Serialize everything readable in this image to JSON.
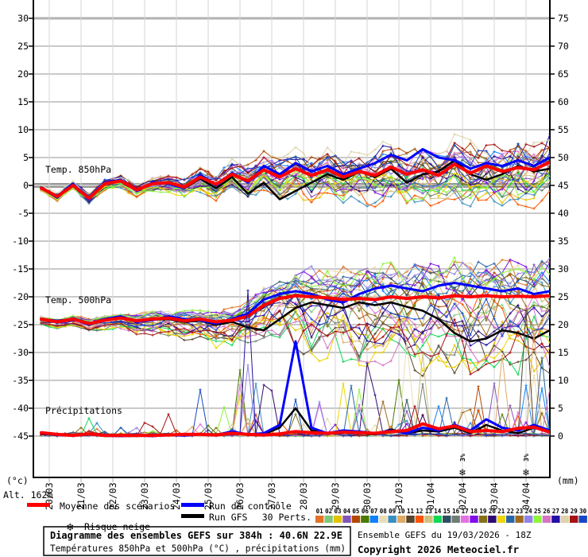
{
  "footer": {
    "altitude": "Alt. 162m",
    "box_line1": "Diagramme des ensembles GEFS sur 384h : 40.6N 22.9E",
    "box_line2": "Températures 850hPa et 500hPa (°C) , précipitations (mm)",
    "run_info": "Ensemble GEFS du 19/03/2026 - 18Z",
    "copyright": "Copyright 2026 Meteociel.fr"
  },
  "chart_data": {
    "type": "line",
    "title": "Diagramme des ensembles GEFS sur 384h : 40.6N 22.9E",
    "x": {
      "start_label": "19/03 18Z",
      "hours": 384,
      "step_hours": 6,
      "day_labels": [
        "20/03",
        "21/03",
        "22/03",
        "23/03",
        "24/03",
        "25/03",
        "26/03",
        "27/03",
        "28/03",
        "29/03",
        "30/03",
        "31/03",
        "01/04",
        "02/04",
        "03/04",
        "04/04"
      ]
    },
    "axes": {
      "left": {
        "unit": "(°c)",
        "min": -45,
        "max": 30,
        "step": 5
      },
      "right": {
        "unit": "(mm)",
        "min": 0,
        "max": 75,
        "step": 5
      }
    },
    "grid": {
      "vertical": "daily",
      "horizontal_every": 5,
      "zero_line": true
    },
    "legend_position": "bottom",
    "series_style": {
      "mean": {
        "color": "#ff0000",
        "label": "Moyenne des scénarios"
      },
      "control": {
        "color": "#0000ff",
        "label": "Run de contrôle"
      },
      "gfs": {
        "color": "#000000",
        "label": "Run GFS"
      },
      "members": {
        "count": 30,
        "label": "30 Perts.",
        "numbers": [
          "01",
          "02",
          "03",
          "04",
          "05",
          "06",
          "07",
          "08",
          "09",
          "10",
          "11",
          "12",
          "13",
          "14",
          "15",
          "16",
          "17",
          "18",
          "19",
          "20",
          "21",
          "22",
          "23",
          "24",
          "25",
          "26",
          "27",
          "28",
          "29",
          "30"
        ],
        "colors": [
          "#e07428",
          "#82c87a",
          "#e3c300",
          "#8455b5",
          "#b34700",
          "#4a7a00",
          "#1080ff",
          "#e9ddb5",
          "#3a8fc0",
          "#dfa966",
          "#57452c",
          "#fa5500",
          "#cfc17d",
          "#10d855",
          "#2c505f",
          "#6e7d76",
          "#e273e2",
          "#7d10e8",
          "#857018",
          "#2d0a73",
          "#eed500",
          "#2a66a5",
          "#a06a20",
          "#8f83e8",
          "#8df53a",
          "#d573c4",
          "#2510a5",
          "#ded2a8",
          "#a51212",
          "#1747c4"
        ]
      }
    },
    "sections": [
      {
        "id": "t850",
        "label": "Temp. 850hPa",
        "kind": "temperature",
        "label_v": 2.6,
        "time_step_hours": 12,
        "mean": [
          -0.5,
          -2.0,
          0.0,
          -2.3,
          0.3,
          0.8,
          -0.8,
          0.3,
          0.5,
          -0.3,
          1.5,
          0.2,
          2.0,
          0.8,
          2.8,
          1.5,
          3.0,
          1.8,
          2.8,
          1.5,
          2.5,
          1.8,
          3.3,
          2.0,
          2.8,
          1.8,
          3.8,
          2.2,
          3.5,
          2.5,
          3.2,
          2.8,
          4.2
        ],
        "control": [
          -0.5,
          -2.2,
          0.2,
          -2.5,
          0.5,
          1.0,
          -1.0,
          0.5,
          0.3,
          -0.5,
          1.8,
          0.0,
          2.2,
          0.5,
          3.5,
          2.0,
          4.0,
          2.5,
          3.5,
          2.0,
          3.0,
          4.0,
          5.5,
          4.5,
          6.5,
          5.0,
          4.5,
          3.0,
          4.0,
          3.5,
          4.5,
          3.5,
          5.0
        ],
        "gfs": [
          -0.5,
          -2.0,
          0.1,
          -2.4,
          0.4,
          0.9,
          -0.9,
          0.2,
          0.4,
          -0.5,
          1.2,
          -0.5,
          1.5,
          -1.5,
          0.5,
          -2.5,
          -1.0,
          0.5,
          2.0,
          1.0,
          2.5,
          1.5,
          3.0,
          0.5,
          2.0,
          2.5,
          4.5,
          2.0,
          1.0,
          2.0,
          3.5,
          2.5,
          3.0
        ],
        "spread": [
          0.5,
          0.7,
          0.8,
          0.9,
          1.0,
          1.2,
          1.4,
          1.6,
          1.8,
          2.1,
          2.4,
          2.7,
          3.0,
          3.3,
          3.6,
          3.9,
          4.1,
          4.3,
          4.5,
          4.6,
          4.7,
          4.8,
          5.0,
          5.1,
          5.2,
          5.4,
          5.5,
          5.6,
          5.7,
          5.8,
          5.9,
          6.0,
          6.0
        ],
        "skew_low": 1.1
      },
      {
        "id": "t500",
        "label": "Temp. 500hPa",
        "kind": "temperature",
        "label_v": -21.2,
        "time_step_hours": 12,
        "mean": [
          -24.0,
          -24.5,
          -24.0,
          -24.8,
          -24.2,
          -23.8,
          -24.3,
          -24.0,
          -23.8,
          -24.3,
          -24.0,
          -24.5,
          -24.2,
          -23.5,
          -21.5,
          -20.3,
          -19.8,
          -20.0,
          -20.2,
          -20.5,
          -20.3,
          -20.5,
          -20.0,
          -20.3,
          -20.0,
          -20.2,
          -19.8,
          -20.0,
          -19.8,
          -20.0,
          -19.9,
          -20.0,
          -19.8
        ],
        "control": [
          -24.0,
          -24.3,
          -24.0,
          -25.0,
          -24.0,
          -23.5,
          -24.5,
          -24.2,
          -23.5,
          -24.0,
          -24.2,
          -24.8,
          -24.0,
          -23.0,
          -20.5,
          -19.5,
          -19.0,
          -19.5,
          -20.5,
          -21.0,
          -19.5,
          -18.5,
          -18.0,
          -18.5,
          -19.0,
          -18.0,
          -17.5,
          -18.0,
          -18.5,
          -19.0,
          -18.5,
          -19.5,
          -19.0
        ],
        "gfs": [
          -24.0,
          -24.4,
          -24.1,
          -24.9,
          -24.1,
          -23.7,
          -24.4,
          -24.1,
          -24.0,
          -24.5,
          -24.3,
          -25.0,
          -24.5,
          -25.5,
          -26.0,
          -24.0,
          -22.0,
          -21.0,
          -21.5,
          -22.0,
          -21.0,
          -21.5,
          -21.0,
          -21.8,
          -22.5,
          -24.0,
          -26.5,
          -28.0,
          -27.5,
          -26.0,
          -26.5,
          -27.5,
          -26.0
        ],
        "spread": [
          0.5,
          0.6,
          0.7,
          0.8,
          0.9,
          1.0,
          1.2,
          1.4,
          1.6,
          1.8,
          2.0,
          2.3,
          2.6,
          3.0,
          3.5,
          4.0,
          4.5,
          5.0,
          5.5,
          5.8,
          6.0,
          6.2,
          6.4,
          6.6,
          6.8,
          6.9,
          7.0,
          7.0,
          7.0,
          7.0,
          7.0,
          7.0,
          7.0
        ],
        "skew_low": 1.9
      },
      {
        "id": "precip",
        "label": "Précipitations",
        "kind": "precipitation",
        "label_v": -40.3,
        "time_step_hours": 12,
        "mean": [
          0.6,
          0.3,
          0.1,
          0.4,
          0.1,
          0.1,
          0.1,
          0.1,
          0.2,
          0.3,
          0.3,
          0.2,
          0.5,
          0.3,
          0.2,
          0.4,
          0.8,
          0.6,
          0.5,
          0.7,
          0.6,
          0.5,
          0.8,
          1.0,
          2.2,
          1.3,
          1.8,
          0.8,
          1.0,
          0.8,
          1.4,
          1.6,
          0.7
        ],
        "control": [
          0.5,
          0.2,
          0.1,
          0.3,
          0.1,
          0.0,
          0.1,
          0.0,
          0.2,
          0.1,
          0.3,
          0.2,
          0.8,
          0.3,
          0.5,
          2.0,
          17.0,
          1.5,
          0.5,
          1.0,
          0.8,
          0.5,
          1.0,
          0.5,
          1.5,
          1.0,
          2.0,
          1.0,
          3.0,
          1.5,
          1.0,
          2.0,
          1.0
        ],
        "gfs": [
          0.4,
          0.2,
          0.1,
          0.3,
          0.0,
          0.0,
          0.0,
          0.1,
          0.2,
          0.1,
          0.4,
          0.2,
          0.6,
          0.2,
          0.3,
          1.5,
          5.0,
          1.0,
          0.5,
          0.8,
          0.5,
          0.3,
          1.2,
          0.5,
          1.0,
          0.8,
          1.5,
          0.5,
          2.0,
          1.0,
          0.5,
          1.5,
          0.8
        ],
        "spike": {
          "breaks": [
            144,
            230
          ],
          "prob": [
            0.04,
            0.06,
            0.08
          ],
          "scale": [
            1.2,
            4.0,
            5.5
          ],
          "cap": [
            8,
            26,
            30
          ]
        }
      }
    ],
    "snow": {
      "label": "Risque neige",
      "glyph": "❄",
      "color": "#5ab8e6",
      "pct_color": "#2222cc",
      "points": [
        {
          "day": "02/04",
          "value": "3%"
        },
        {
          "day": "04/04",
          "value": "3%"
        }
      ]
    }
  }
}
